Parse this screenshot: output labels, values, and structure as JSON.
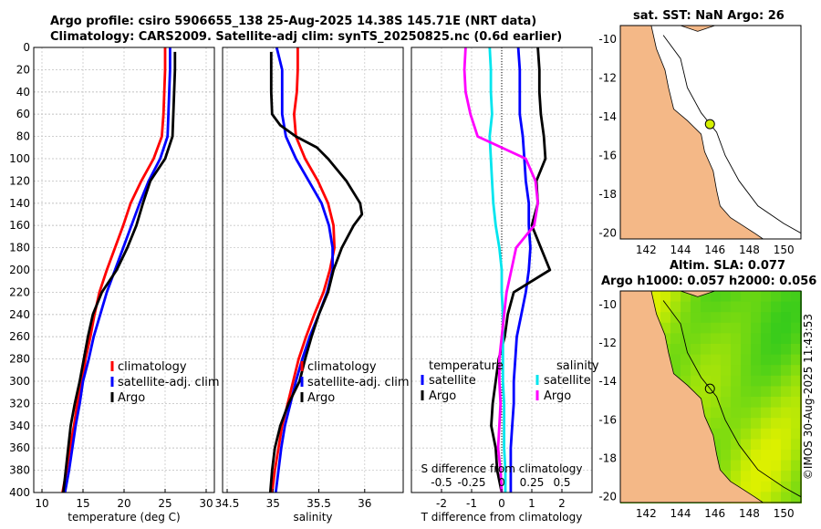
{
  "titles": {
    "line1": "Argo profile: csiro 5906655_138 25-Aug-2025 14.38S 145.71E (NRT data)",
    "line2": "Climatology: CARS2009. Satellite-adj clim: synTS_20250825.nc (0.6d earlier)",
    "map1": "sat. SST: NaN Argo: 26",
    "map2_line1": "Altim. SLA: 0.077",
    "map2_line2": "Argo h1000: 0.057 h2000: 0.056",
    "credit": "©IMOS 30-Aug-2025 11:43:53"
  },
  "colors": {
    "climatology": "#ff0000",
    "satellite": "#0000ff",
    "argo": "#000000",
    "t_sat": "#00e5ee",
    "s_argo": "#ff00ff",
    "land": "#f4b887",
    "sea": "#ffffff",
    "float": "#d4f000"
  },
  "chart_data": [
    {
      "type": "line",
      "name": "temperature",
      "xlabel": "temperature (deg C)",
      "ylabel": "",
      "xlim": [
        9,
        31
      ],
      "ylim": [
        400,
        0
      ],
      "xticks": [
        10,
        15,
        20,
        25,
        30
      ],
      "xtick_labels": [
        "10",
        "15",
        "20",
        "25",
        "30"
      ],
      "yticks": [
        0,
        20,
        40,
        60,
        80,
        100,
        120,
        140,
        160,
        180,
        200,
        220,
        240,
        260,
        280,
        300,
        320,
        340,
        360,
        380,
        400
      ],
      "ytick_labels": [
        "0",
        "20",
        "40",
        "60",
        "80",
        "100",
        "120",
        "140",
        "160",
        "180",
        "200",
        "220",
        "240",
        "260",
        "280",
        "300",
        "320",
        "340",
        "360",
        "380",
        "400"
      ],
      "legend": [
        "climatology",
        "satellite-adj. clim",
        "Argo"
      ],
      "series": [
        {
          "name": "climatology",
          "depth": [
            0,
            20,
            40,
            60,
            80,
            100,
            120,
            140,
            160,
            180,
            200,
            220,
            240,
            260,
            280,
            300,
            320,
            340,
            360,
            380,
            400
          ],
          "values": [
            25.0,
            25.0,
            24.9,
            24.8,
            24.6,
            23.6,
            22.1,
            20.8,
            19.9,
            18.9,
            17.9,
            17.0,
            16.4,
            15.9,
            15.3,
            14.9,
            14.3,
            13.9,
            13.4,
            13.0,
            12.5
          ]
        },
        {
          "name": "satellite",
          "depth": [
            0,
            20,
            40,
            60,
            80,
            100,
            120,
            140,
            160,
            180,
            200,
            220,
            240,
            260,
            280,
            300,
            320,
            340,
            360,
            380,
            400
          ],
          "values": [
            25.6,
            25.6,
            25.5,
            25.4,
            25.3,
            24.4,
            23.0,
            21.9,
            20.9,
            19.9,
            18.9,
            17.9,
            17.1,
            16.3,
            15.7,
            15.0,
            14.6,
            14.1,
            13.7,
            13.3,
            12.8
          ]
        },
        {
          "name": "Argo",
          "depth": [
            4,
            20,
            40,
            60,
            80,
            100,
            120,
            140,
            160,
            180,
            200,
            220,
            240,
            260,
            280,
            300,
            320,
            340,
            360,
            380,
            400
          ],
          "values": [
            26.2,
            26.2,
            26.1,
            26.0,
            25.9,
            25.0,
            23.2,
            22.3,
            21.5,
            20.4,
            19.1,
            17.3,
            16.2,
            15.6,
            15.1,
            14.6,
            14.0,
            13.5,
            13.2,
            12.9,
            12.6
          ]
        }
      ]
    },
    {
      "type": "line",
      "name": "salinity",
      "xlabel": "salinity",
      "xlim": [
        34.45,
        36.42
      ],
      "ylim": [
        400,
        0
      ],
      "xticks": [
        34.5,
        35,
        35.5,
        36
      ],
      "xtick_labels": [
        "34.5",
        "35",
        "35.5",
        "36"
      ],
      "legend": [
        "climatology",
        "satellite-adj. clim",
        "Argo"
      ],
      "series": [
        {
          "name": "climatology",
          "depth": [
            0,
            20,
            40,
            60,
            80,
            100,
            120,
            140,
            160,
            180,
            200,
            220,
            240,
            260,
            280,
            300,
            320,
            340,
            360,
            380,
            400
          ],
          "values": [
            35.27,
            35.27,
            35.26,
            35.23,
            35.25,
            35.35,
            35.49,
            35.6,
            35.66,
            35.67,
            35.62,
            35.55,
            35.45,
            35.36,
            35.28,
            35.22,
            35.16,
            35.1,
            35.06,
            35.02,
            34.99
          ]
        },
        {
          "name": "satellite",
          "depth": [
            0,
            20,
            40,
            60,
            80,
            100,
            120,
            140,
            160,
            180,
            200,
            220,
            240,
            260,
            280,
            300,
            320,
            340,
            360,
            380,
            400
          ],
          "values": [
            35.04,
            35.1,
            35.1,
            35.1,
            35.14,
            35.25,
            35.39,
            35.53,
            35.61,
            35.65,
            35.65,
            35.59,
            35.5,
            35.4,
            35.32,
            35.25,
            35.19,
            35.13,
            35.09,
            35.06,
            35.03
          ]
        },
        {
          "name": "Argo",
          "depth": [
            4,
            20,
            40,
            60,
            70,
            80,
            90,
            100,
            120,
            140,
            150,
            160,
            180,
            200,
            220,
            240,
            260,
            280,
            300,
            320,
            340,
            360,
            380,
            400
          ],
          "values": [
            34.98,
            34.98,
            34.98,
            34.99,
            35.08,
            35.25,
            35.48,
            35.6,
            35.8,
            35.95,
            35.97,
            35.88,
            35.75,
            35.66,
            35.6,
            35.5,
            35.42,
            35.35,
            35.29,
            35.17,
            35.08,
            35.02,
            34.99,
            34.97
          ]
        }
      ]
    },
    {
      "type": "line",
      "name": "differences",
      "xlabel": "T difference from climatology",
      "top_label": "S difference from climatology",
      "xlim": [
        -3,
        3
      ],
      "ylim": [
        400,
        0
      ],
      "xticks": [
        -2,
        -1,
        0,
        1,
        2
      ],
      "xtick_labels": [
        "-2",
        "-1",
        "0",
        "1",
        "2"
      ],
      "top_ticks": [
        -0.5,
        -0.25,
        0,
        0.25,
        0.5
      ],
      "top_tick_labels": [
        "-0.5",
        "-0.25",
        "0",
        "0.25",
        "0.5"
      ],
      "legend": {
        "temperature": [
          "satellite",
          "Argo"
        ],
        "salinity": [
          "satellite",
          "Argo"
        ]
      },
      "legend_headers": [
        "temperature",
        "salinity"
      ],
      "series": [
        {
          "name": "temperature satellite",
          "depth": [
            0,
            20,
            40,
            60,
            80,
            100,
            120,
            140,
            160,
            180,
            200,
            220,
            240,
            260,
            280,
            300,
            320,
            340,
            360,
            380,
            400
          ],
          "values": [
            0.55,
            0.6,
            0.6,
            0.6,
            0.7,
            0.75,
            0.8,
            0.9,
            0.9,
            0.95,
            0.9,
            0.8,
            0.65,
            0.5,
            0.45,
            0.4,
            0.4,
            0.35,
            0.3,
            0.3,
            0.3
          ]
        },
        {
          "name": "temperature Argo",
          "depth": [
            0,
            20,
            40,
            60,
            80,
            100,
            120,
            140,
            160,
            180,
            200,
            220,
            240,
            260,
            280,
            300,
            320,
            340,
            360,
            380,
            400
          ],
          "values": [
            1.2,
            1.25,
            1.25,
            1.3,
            1.4,
            1.45,
            1.15,
            1.2,
            1.0,
            1.3,
            1.6,
            0.4,
            0.2,
            0.1,
            -0.1,
            -0.2,
            -0.3,
            -0.35,
            -0.2,
            -0.15,
            0.0
          ]
        },
        {
          "name": "salinity satellite",
          "depth": [
            0,
            20,
            40,
            60,
            80,
            100,
            120,
            140,
            160,
            180,
            200,
            220,
            240,
            260,
            280,
            300,
            320,
            340,
            360,
            380,
            400
          ],
          "values": [
            -0.1,
            -0.09,
            -0.09,
            -0.08,
            -0.1,
            -0.09,
            -0.08,
            -0.07,
            -0.05,
            -0.02,
            0.0,
            0.0,
            0.01,
            0.01,
            0.01,
            0.01,
            0.02,
            0.02,
            0.02,
            0.03,
            0.03
          ]
        },
        {
          "name": "salinity Argo",
          "depth": [
            0,
            20,
            40,
            60,
            80,
            100,
            120,
            140,
            160,
            180,
            200,
            220,
            240,
            260,
            280,
            300,
            320,
            340,
            360,
            380,
            400
          ],
          "values": [
            -0.3,
            -0.31,
            -0.3,
            -0.26,
            -0.2,
            0.2,
            0.28,
            0.3,
            0.27,
            0.12,
            0.08,
            0.04,
            0.02,
            0.0,
            -0.02,
            -0.02,
            -0.01,
            -0.02,
            -0.03,
            -0.01,
            0.0
          ]
        }
      ]
    },
    {
      "type": "map",
      "name": "sst map",
      "xlim": [
        140.5,
        151
      ],
      "ylim": [
        -20.3,
        -9.3
      ],
      "xticks": [
        142,
        144,
        146,
        148,
        150
      ],
      "xtick_labels": [
        "142",
        "144",
        "146",
        "148",
        "150"
      ],
      "yticks": [
        -10,
        -12,
        -14,
        -16,
        -18,
        -20
      ],
      "ytick_labels": [
        "-10",
        "-12",
        "-14",
        "-16",
        "-18",
        "-20"
      ],
      "float_position": [
        145.71,
        -14.38
      ]
    },
    {
      "type": "heatmap",
      "name": "sla map",
      "xlim": [
        140.5,
        151
      ],
      "ylim": [
        -20.3,
        -9.3
      ],
      "xticks": [
        142,
        144,
        146,
        148,
        150
      ],
      "xtick_labels": [
        "142",
        "144",
        "146",
        "148",
        "150"
      ],
      "yticks": [
        -10,
        -12,
        -14,
        -16,
        -18,
        -20
      ],
      "ytick_labels": [
        "-10",
        "-12",
        "-14",
        "-16",
        "-18",
        "-20"
      ],
      "float_position": [
        145.71,
        -14.38
      ]
    }
  ]
}
